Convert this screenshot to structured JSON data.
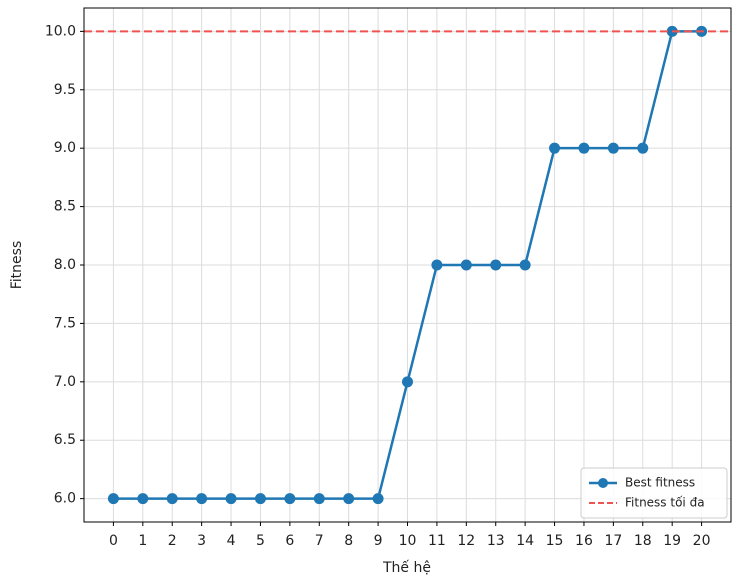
{
  "chart_data": {
    "type": "line",
    "xlabel": "Thế hệ",
    "ylabel": "Fitness",
    "x": [
      0,
      1,
      2,
      3,
      4,
      5,
      6,
      7,
      8,
      9,
      10,
      11,
      12,
      13,
      14,
      15,
      16,
      17,
      18,
      19,
      20
    ],
    "series": [
      {
        "name": "Best fitness",
        "color": "#1f77b4",
        "values": [
          6,
          6,
          6,
          6,
          6,
          6,
          6,
          6,
          6,
          6,
          7,
          8,
          8,
          8,
          8,
          9,
          9,
          9,
          9,
          10,
          10
        ]
      }
    ],
    "reference_lines": [
      {
        "y": 10,
        "name": "Fitness tối đa",
        "color": "#ef5350"
      }
    ],
    "xlim": [
      -1,
      21
    ],
    "xticks": [
      0,
      1,
      2,
      3,
      4,
      5,
      6,
      7,
      8,
      9,
      10,
      11,
      12,
      13,
      14,
      15,
      16,
      17,
      18,
      19,
      20
    ],
    "ylim": [
      5.8,
      10.2
    ],
    "yticks": [
      {
        "value": 6,
        "label": "6.0"
      },
      6.5,
      {
        "value": 7,
        "label": "7.0"
      },
      7.5,
      {
        "value": 8,
        "label": "8.0"
      },
      8.5,
      {
        "value": 9,
        "label": "9.0"
      },
      9.5,
      {
        "value": 10,
        "label": "10.0"
      }
    ],
    "grid": true,
    "legend": "lower right"
  }
}
